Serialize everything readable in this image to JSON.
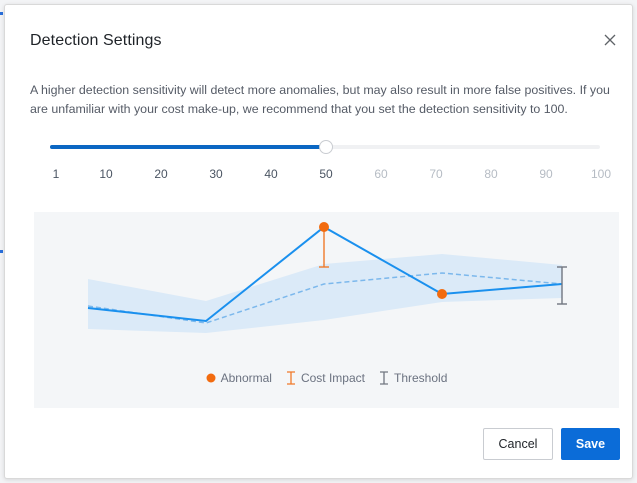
{
  "dialog": {
    "title": "Detection Settings",
    "description": "A higher detection sensitivity will detect more anomalies, but may also result in more false positives. If you are unfamiliar with your cost make-up, we recommend that you set the detection sensitivity to 100.",
    "close_icon": "close-icon"
  },
  "slider": {
    "min": 1,
    "max": 100,
    "value": 50,
    "ticks": [
      "1",
      "10",
      "20",
      "30",
      "40",
      "50",
      "60",
      "70",
      "80",
      "90",
      "100"
    ],
    "tick_values": [
      1,
      10,
      20,
      30,
      40,
      50,
      60,
      70,
      80,
      90,
      100
    ],
    "active_color": "#0b67c3",
    "active_tick_color": "#4b5563",
    "inactive_tick_color": "#b6bcc4"
  },
  "chart": {
    "legend": {
      "abnormal": "Abnormal",
      "cost_impact": "Cost Impact",
      "threshold": "Threshold"
    },
    "colors": {
      "actual_line": "#1a90ee",
      "expected_line": "#7cb8ec",
      "band": "#dbeaf8",
      "abnormal": "#f26b0f",
      "cost_impact": "#f07a2a",
      "threshold": "#707680"
    },
    "icons": {
      "abnormal": "abnormal-dot-icon",
      "cost_impact": "cost-impact-icon",
      "threshold": "threshold-icon"
    }
  },
  "buttons": {
    "cancel": "Cancel",
    "save": "Save"
  }
}
